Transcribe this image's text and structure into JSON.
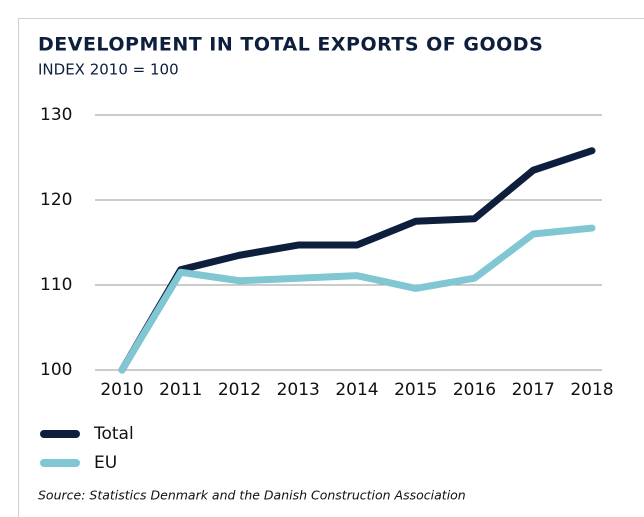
{
  "chart_data": {
    "type": "line",
    "title": "DEVELOPMENT IN TOTAL EXPORTS OF GOODS",
    "subtitle": "INDEX 2010 = 100",
    "source": "Source: Statistics Denmark and the Danish Construction Association",
    "categories": [
      "2010",
      "2011",
      "2012",
      "2013",
      "2014",
      "2015",
      "2016",
      "2017",
      "2018"
    ],
    "series": [
      {
        "name": "Total",
        "color": "#0d1f3c",
        "values": [
          100,
          111.8,
          113.5,
          114.7,
          114.7,
          117.5,
          117.8,
          123.5,
          125.8
        ]
      },
      {
        "name": "EU",
        "color": "#80c6d3",
        "values": [
          100,
          111.5,
          110.5,
          110.8,
          111.1,
          109.6,
          110.8,
          116.0,
          116.7
        ]
      }
    ],
    "ylim": [
      100,
      130
    ],
    "yticks": [
      100,
      110,
      120,
      130
    ],
    "grid": true
  }
}
